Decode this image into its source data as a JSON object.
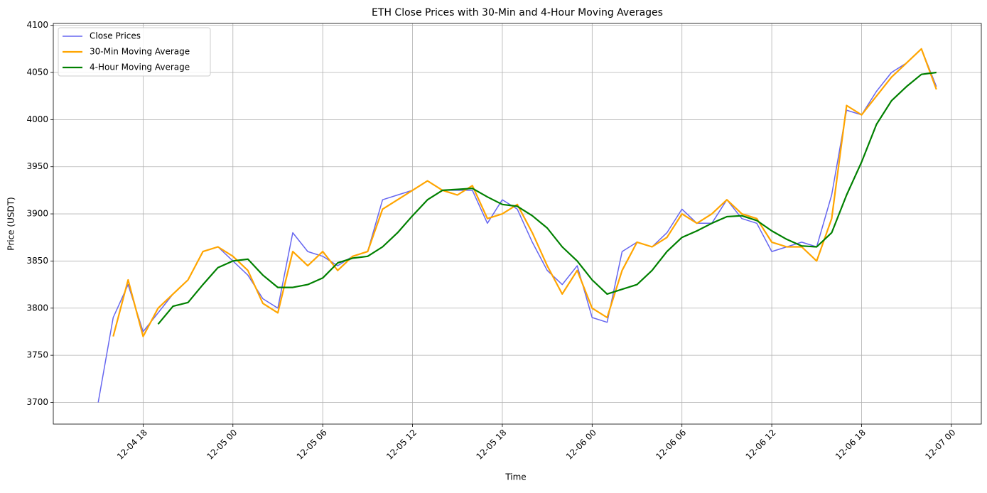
{
  "chart_data": {
    "type": "line",
    "title": "ETH Close Prices with 30-Min and 4-Hour Moving Averages",
    "x_label": "Time",
    "y_label": "Price (USDT)",
    "x": [
      "12-04 15",
      "12-04 16",
      "12-04 17",
      "12-04 18",
      "12-04 19",
      "12-04 20",
      "12-04 21",
      "12-04 22",
      "12-04 23",
      "12-05 00",
      "12-05 01",
      "12-05 02",
      "12-05 03",
      "12-05 04",
      "12-05 05",
      "12-05 06",
      "12-05 07",
      "12-05 08",
      "12-05 09",
      "12-05 10",
      "12-05 11",
      "12-05 12",
      "12-05 13",
      "12-05 14",
      "12-05 15",
      "12-05 16",
      "12-05 17",
      "12-05 18",
      "12-05 19",
      "12-05 20",
      "12-05 21",
      "12-05 22",
      "12-05 23",
      "12-06 00",
      "12-06 01",
      "12-06 02",
      "12-06 03",
      "12-06 04",
      "12-06 05",
      "12-06 06",
      "12-06 07",
      "12-06 08",
      "12-06 09",
      "12-06 10",
      "12-06 11",
      "12-06 12",
      "12-06 13",
      "12-06 14",
      "12-06 15",
      "12-06 16",
      "12-06 17",
      "12-06 18",
      "12-06 19",
      "12-06 20",
      "12-06 21",
      "12-06 22",
      "12-06 23"
    ],
    "series": [
      {
        "name": "Close Prices",
        "color": "#6666f0",
        "values": [
          3700,
          3790,
          3825,
          3775,
          3795,
          3815,
          3830,
          3860,
          3865,
          3850,
          3835,
          3810,
          3800,
          3880,
          3860,
          3855,
          3845,
          3855,
          3860,
          3915,
          3920,
          3925,
          3935,
          3925,
          3925,
          3925,
          3890,
          3915,
          3905,
          3870,
          3840,
          3825,
          3845,
          3790,
          3785,
          3860,
          3870,
          3865,
          3880,
          3905,
          3890,
          3890,
          3915,
          3895,
          3890,
          3860,
          3865,
          3870,
          3865,
          3920,
          4010,
          4005,
          4030,
          4050,
          4060,
          4075,
          4035
        ]
      },
      {
        "name": "30-Min Moving Average",
        "color": "#ffa500",
        "values": [
          null,
          3770,
          3830,
          3770,
          3800,
          3815,
          3830,
          3860,
          3865,
          3855,
          3840,
          3805,
          3795,
          3860,
          3845,
          3860,
          3840,
          3855,
          3860,
          3905,
          3915,
          3925,
          3935,
          3925,
          3920,
          3930,
          3895,
          3900,
          3910,
          3880,
          3845,
          3815,
          3840,
          3800,
          3790,
          3840,
          3870,
          3865,
          3875,
          3900,
          3890,
          3900,
          3915,
          3900,
          3895,
          3870,
          3865,
          3865,
          3850,
          3895,
          4015,
          4005,
          4025,
          4045,
          4060,
          4075,
          4032
        ]
      },
      {
        "name": "4-Hour Moving Average",
        "color": "#008000",
        "values": [
          null,
          null,
          null,
          null,
          3783,
          3802,
          3806,
          3825,
          3843,
          3850,
          3852,
          3835,
          3822,
          3822,
          3825,
          3832,
          3848,
          3853,
          3855,
          3865,
          3880,
          3898,
          3915,
          3925,
          3926,
          3927,
          3918,
          3910,
          3908,
          3898,
          3885,
          3865,
          3850,
          3830,
          3815,
          3820,
          3825,
          3840,
          3860,
          3875,
          3882,
          3890,
          3897,
          3898,
          3893,
          3882,
          3873,
          3866,
          3865,
          3880,
          3920,
          3955,
          3995,
          4020,
          4035,
          4048,
          4050
        ]
      }
    ],
    "xlim": [
      "12-04 12",
      "12-07 02"
    ],
    "xticks": [
      "12-04 18",
      "12-05 00",
      "12-05 06",
      "12-05 12",
      "12-05 18",
      "12-06 00",
      "12-06 06",
      "12-06 12",
      "12-06 18",
      "12-07 00"
    ],
    "ylim": [
      3677,
      4102
    ],
    "yticks": [
      3700,
      3750,
      3800,
      3850,
      3900,
      3950,
      4000,
      4050,
      4100
    ],
    "grid": true,
    "legend": "upper left"
  }
}
